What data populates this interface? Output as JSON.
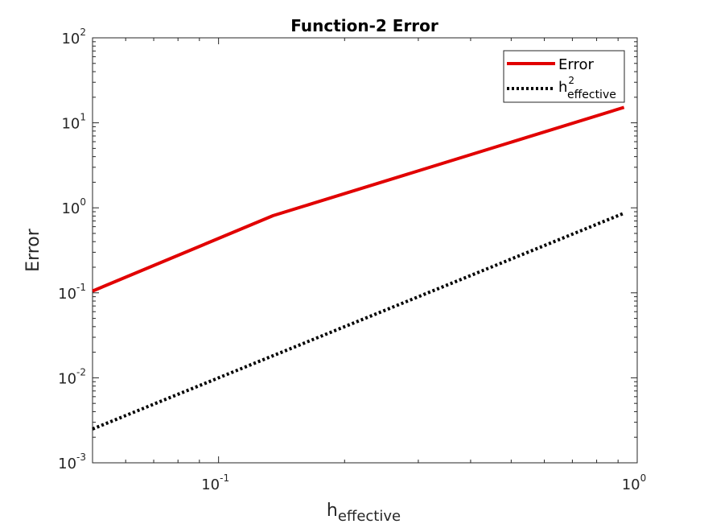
{
  "chart_data": {
    "type": "line",
    "title": "Function-2 Error",
    "xlabel": {
      "base": "h",
      "sub": "effective"
    },
    "ylabel": "Error",
    "xscale": "log",
    "yscale": "log",
    "xlim": [
      0.05,
      1.0
    ],
    "ylim": [
      0.001,
      100
    ],
    "grid": false,
    "legend_position": "top-right",
    "x_ticks": [
      {
        "value": 0.1,
        "base": "10",
        "exp": "-1"
      },
      {
        "value": 1.0,
        "base": "10",
        "exp": "0"
      }
    ],
    "y_ticks": [
      {
        "value": 0.001,
        "base": "10",
        "exp": "-3"
      },
      {
        "value": 0.01,
        "base": "10",
        "exp": "-2"
      },
      {
        "value": 0.1,
        "base": "10",
        "exp": "-1"
      },
      {
        "value": 1,
        "base": "10",
        "exp": "0"
      },
      {
        "value": 10,
        "base": "10",
        "exp": "1"
      },
      {
        "value": 100,
        "base": "10",
        "exp": "2"
      }
    ],
    "series": [
      {
        "name": "Error",
        "legend_label": {
          "base": "Error"
        },
        "color": "#e10000",
        "style": "solid",
        "x": [
          0.05,
          0.135,
          0.93
        ],
        "y": [
          0.105,
          0.81,
          15.2
        ]
      },
      {
        "name": "h^2_effective",
        "legend_label": {
          "base": "h",
          "sup": "2",
          "sub": "effective"
        },
        "color": "#000000",
        "style": "dotted",
        "x": [
          0.05,
          0.135,
          0.93
        ],
        "y": [
          0.0025,
          0.0182,
          0.865
        ]
      }
    ]
  }
}
